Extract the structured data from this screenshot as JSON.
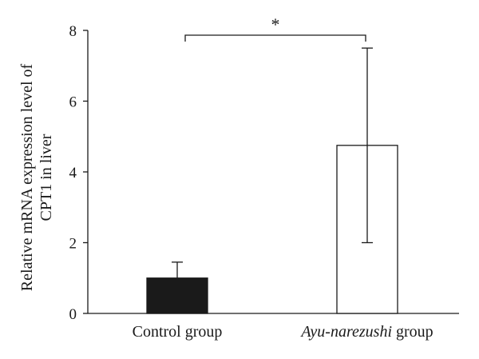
{
  "chart_data": {
    "type": "bar",
    "categories": [
      "Control group",
      "Ayu-narezushi group"
    ],
    "category_parts": [
      [
        {
          "text": "Control group",
          "italic": false
        }
      ],
      [
        {
          "text": "Ayu-narezushi",
          "italic": true
        },
        {
          "text": " group",
          "italic": false
        }
      ]
    ],
    "values": [
      1.0,
      4.75
    ],
    "error_upper": [
      1.45,
      7.5
    ],
    "error_lower": [
      1.0,
      2.0
    ],
    "bar_colors": [
      "#1a1a1a",
      "#ffffff"
    ],
    "ylabel_lines": [
      "Relative mRNA expression level of",
      "CPT1 in liver"
    ],
    "ylim": [
      0,
      8
    ],
    "yticks": [
      "0",
      "2",
      "4",
      "6",
      "8"
    ],
    "significance": {
      "from": 0,
      "to": 1,
      "label": "*"
    },
    "grid": false,
    "legend": "none"
  }
}
